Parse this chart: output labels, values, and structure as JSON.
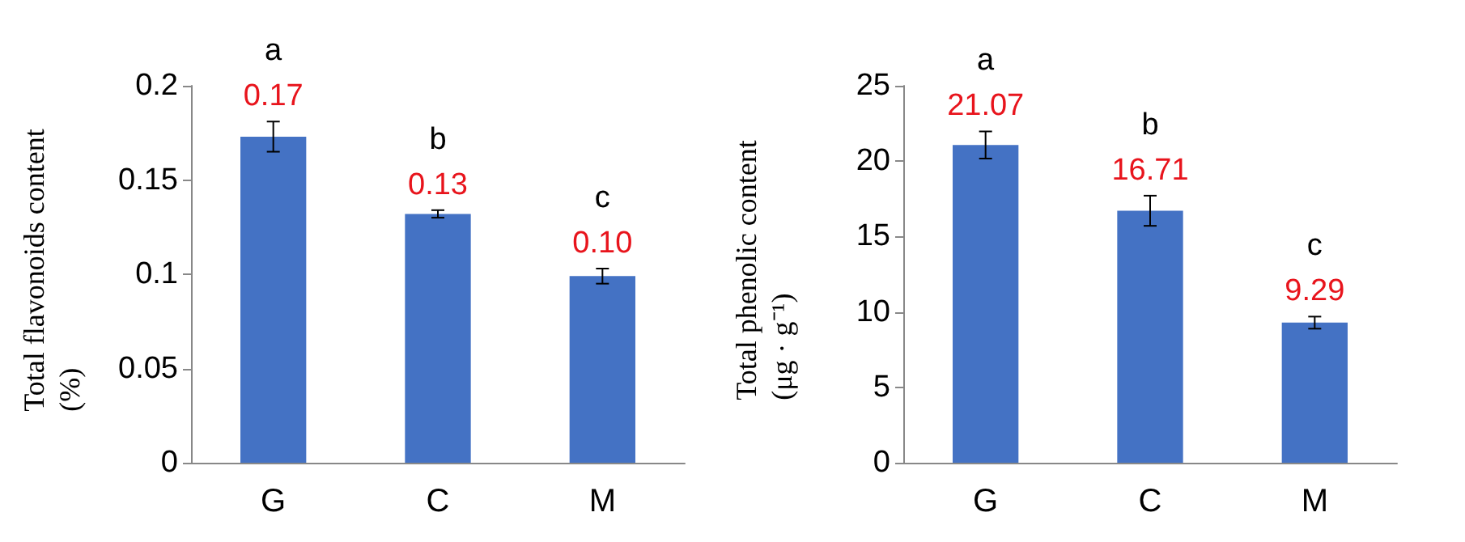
{
  "chart_data": [
    {
      "type": "bar",
      "ylabel": "Total flavonoids content\n(%)",
      "categories": [
        "G",
        "C",
        "M"
      ],
      "values": [
        0.173,
        0.132,
        0.099
      ],
      "errors": [
        0.008,
        0.002,
        0.004
      ],
      "value_labels": [
        "0.17",
        "0.13",
        "0.10"
      ],
      "color": "#4472c4",
      "ylim": [
        0,
        0.2
      ],
      "yticks": [
        0,
        0.05,
        0.1,
        0.15,
        0.2
      ],
      "grid": false,
      "annotations": [
        "a",
        "b",
        "c"
      ]
    },
    {
      "type": "bar",
      "ylabel": "Total phenolic content\n(μg · g⁻¹)",
      "categories": [
        "G",
        "C",
        "M"
      ],
      "values": [
        21.07,
        16.71,
        9.29
      ],
      "errors": [
        0.9,
        1.0,
        0.4
      ],
      "value_labels": [
        "21.07",
        "16.71",
        "9.29"
      ],
      "color": "#4472c4",
      "ylim": [
        0,
        25
      ],
      "yticks": [
        0,
        5,
        10,
        15,
        20,
        25
      ],
      "grid": false,
      "annotations": [
        "a",
        "b",
        "c"
      ]
    }
  ]
}
